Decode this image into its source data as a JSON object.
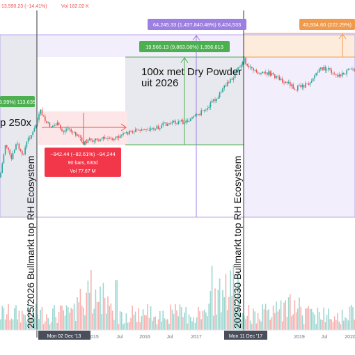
{
  "header": {
    "ohlc_text": "13,590.23 (−14.41%)",
    "vol_text": "Vol 182.02 K"
  },
  "annotations": {
    "top_left_measure": "5.99%) 113,635",
    "left_label": "p 250x",
    "center_title_line1": "100x met Dry Powder",
    "center_title_line2": "uit 2026",
    "measure_up_small": "19,566.13 (9,863.06%) 1,956,613",
    "measure_up_large": "64,245.33 (1,437,840.48%) 6,424,533",
    "measure_right": "43,934.60 (222.29%)",
    "drawdown_line1": "−942.44 (−82.61%) −94,244",
    "drawdown_line2": "90 bars, 630d",
    "drawdown_line3": "Vol 77.67 M",
    "vertical_left": "2025/2026 Bullmarkt top RH Ecosystem",
    "vertical_right": "2029/2030 Bullmarkt top RH Ecosystem"
  },
  "xaxis": {
    "ticks": [
      "Jul",
      "2015",
      "Jul",
      "2016",
      "Jul",
      "2017",
      "2019",
      "Jul",
      "2020"
    ],
    "date_label_left": "Mon 02 Dec '13",
    "date_label_right": "Mon 11 Dec '17"
  },
  "colors": {
    "up": "#26a69a",
    "down": "#ef5350",
    "purple_zone": "#f3eefc",
    "gray_zone": "#e7e9ee",
    "measure_green": "#4caf50",
    "measure_purple": "#9c7fe0",
    "measure_orange": "#f09a4e",
    "drawdown_red": "#f2374b"
  },
  "chart_data": {
    "type": "candlestick",
    "title": "",
    "series": [
      {
        "name": "",
        "segments": [
          {
            "from": "2013-12",
            "to": "2015-01",
            "trend": "down",
            "start": 1100,
            "end": 180
          },
          {
            "from": "2015-01",
            "to": "2016-01",
            "trend": "sideways",
            "start": 180,
            "end": 420
          },
          {
            "from": "2016-01",
            "to": "2017-12",
            "trend": "up",
            "start": 420,
            "end": 19566.13
          },
          {
            "from": "2017-12",
            "to": "2018-12",
            "trend": "down",
            "start": 19566.13,
            "end": 3200
          },
          {
            "from": "2018-12",
            "to": "2020-03",
            "trend": "up",
            "start": 3200,
            "end": 13590.23
          }
        ]
      }
    ],
    "volume": "bars shown below price, both up and down colored"
  }
}
